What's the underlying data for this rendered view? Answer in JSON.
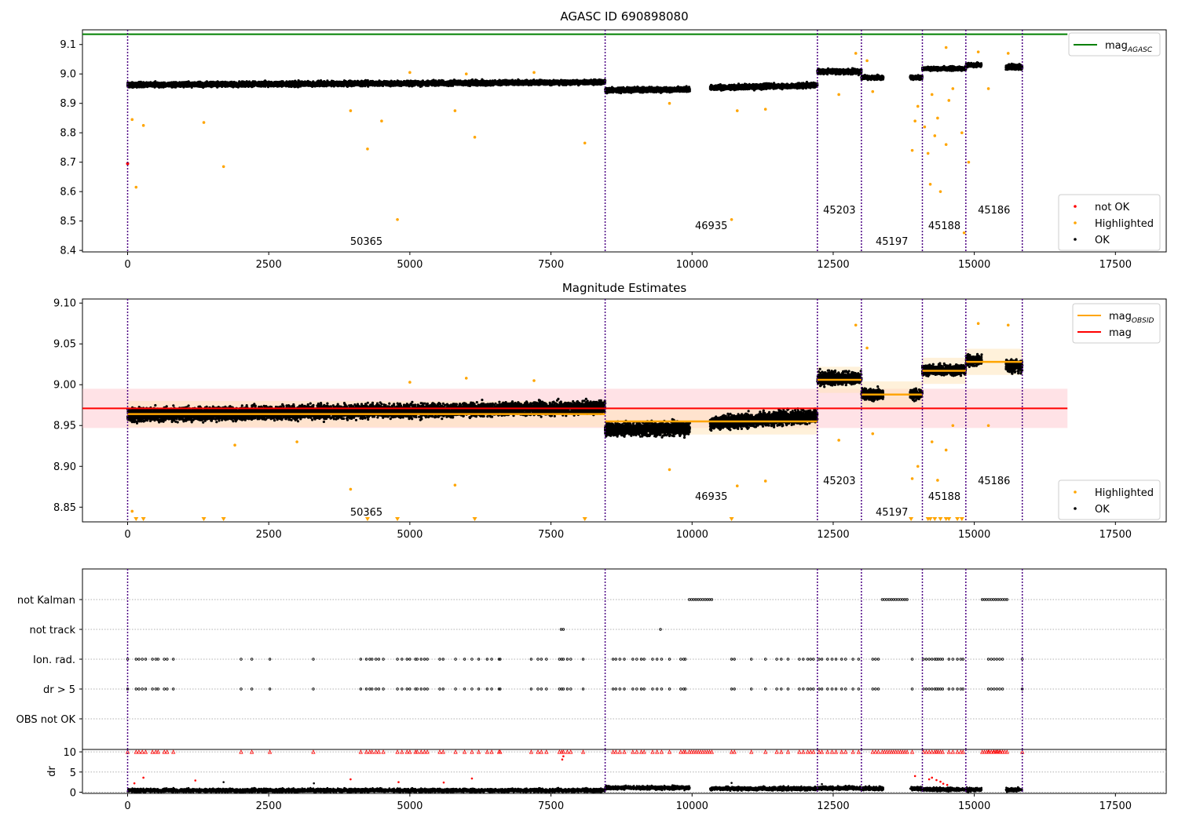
{
  "figure": {
    "ticks_x": [
      0,
      2500,
      5000,
      7500,
      10000,
      12500,
      15000,
      17500
    ],
    "boundaries": [
      0,
      8460,
      12220,
      13000,
      14080,
      14850,
      15850
    ],
    "obsid_labels": [
      {
        "text": "50365",
        "x": 4230,
        "level": "low"
      },
      {
        "text": "46935",
        "x": 10340,
        "level": "mid"
      },
      {
        "text": "45203",
        "x": 12610,
        "level": "high"
      },
      {
        "text": "45197",
        "x": 13540,
        "level": "low"
      },
      {
        "text": "45188",
        "x": 14470,
        "level": "mid"
      },
      {
        "text": "45186",
        "x": 15350,
        "level": "high"
      }
    ],
    "colors": {
      "agasc": "#008000",
      "mag": "#ff0000",
      "obsid": "#ffa500",
      "boundary": "#4b0082",
      "ok": "#000000",
      "not_ok": "#ff0000",
      "highlighted": "#ffa500"
    }
  },
  "chart_data": [
    {
      "type": "scatter",
      "title": "AGASC ID 690898080",
      "xlim": [
        -800,
        18400
      ],
      "ylim": [
        8.395,
        9.15
      ],
      "yticks": [
        "8.4",
        "8.5",
        "8.6",
        "8.7",
        "8.8",
        "8.9",
        "9.0",
        "9.1"
      ],
      "agasc_mag": 9.135,
      "agasc_x_range": [
        -800,
        16650
      ],
      "segments": [
        {
          "x": [
            0,
            8460
          ],
          "start": 8.963,
          "end": 8.972,
          "spread": 0.012
        },
        {
          "x": [
            8460,
            9960
          ],
          "start": 8.945,
          "end": 8.947,
          "spread": 0.012
        },
        {
          "x": [
            10320,
            12220
          ],
          "start": 8.953,
          "end": 8.962,
          "spread": 0.012
        },
        {
          "x": [
            12220,
            13000
          ],
          "start": 9.008,
          "end": 9.008,
          "spread": 0.012
        },
        {
          "x": [
            13000,
            13390
          ],
          "start": 8.988,
          "end": 8.988,
          "spread": 0.01
        },
        {
          "x": [
            13860,
            14080
          ],
          "start": 8.988,
          "end": 8.988,
          "spread": 0.01
        },
        {
          "x": [
            14080,
            14850
          ],
          "start": 9.018,
          "end": 9.018,
          "spread": 0.009
        },
        {
          "x": [
            14850,
            15130
          ],
          "start": 9.03,
          "end": 9.03,
          "spread": 0.01
        },
        {
          "x": [
            15560,
            15850
          ],
          "start": 9.023,
          "end": 9.023,
          "spread": 0.012
        }
      ],
      "highlighted": [
        [
          80,
          8.845
        ],
        [
          150,
          8.615
        ],
        [
          280,
          8.825
        ],
        [
          1350,
          8.835
        ],
        [
          1700,
          8.685
        ],
        [
          3950,
          8.875
        ],
        [
          4250,
          8.745
        ],
        [
          4500,
          8.84
        ],
        [
          4780,
          8.505
        ],
        [
          5800,
          8.875
        ],
        [
          6150,
          8.785
        ],
        [
          8100,
          8.765
        ],
        [
          10700,
          8.505
        ],
        [
          10800,
          8.875
        ],
        [
          12600,
          8.93
        ],
        [
          13200,
          8.94
        ],
        [
          13900,
          8.74
        ],
        [
          13950,
          8.84
        ],
        [
          14000,
          8.89
        ],
        [
          14120,
          8.82
        ],
        [
          14180,
          8.73
        ],
        [
          14220,
          8.625
        ],
        [
          14300,
          8.79
        ],
        [
          14350,
          8.85
        ],
        [
          14400,
          8.6
        ],
        [
          14500,
          8.76
        ],
        [
          14550,
          8.91
        ],
        [
          14620,
          8.95
        ],
        [
          14780,
          8.8
        ],
        [
          14820,
          8.46
        ],
        [
          14900,
          8.7
        ],
        [
          15250,
          8.95
        ],
        [
          9600,
          8.9
        ],
        [
          11300,
          8.88
        ],
        [
          5000,
          9.005
        ],
        [
          6000,
          9.0
        ],
        [
          7200,
          9.005
        ],
        [
          12900,
          9.07
        ],
        [
          13100,
          9.045
        ],
        [
          14500,
          9.09
        ],
        [
          15070,
          9.075
        ],
        [
          15600,
          9.07
        ],
        [
          14250,
          8.93
        ]
      ],
      "not_ok": [
        [
          0,
          8.695
        ]
      ],
      "legend_top": [
        {
          "label": "mag",
          "sub": "AGASC",
          "kind": "line",
          "color": "#008000"
        }
      ],
      "legend_bottom": [
        {
          "label": "not OK",
          "kind": "dot",
          "color": "#ff0000"
        },
        {
          "label": "Highlighted",
          "kind": "dot",
          "color": "#ffa500"
        },
        {
          "label": "OK",
          "kind": "dot",
          "color": "#000000"
        }
      ]
    },
    {
      "type": "scatter",
      "title": "Magnitude Estimates",
      "xlim": [
        -800,
        18400
      ],
      "ylim": [
        8.832,
        9.105
      ],
      "yticks": [
        "8.85",
        "8.90",
        "8.95",
        "9.00",
        "9.05",
        "9.10"
      ],
      "mag": 8.971,
      "mag_band": [
        8.947,
        8.995
      ],
      "mag_x_range": [
        -800,
        16650
      ],
      "obsid_mags": [
        {
          "x": [
            0,
            8460
          ],
          "mag": 8.964
        },
        {
          "x": [
            8460,
            12220
          ],
          "mag": 8.955
        },
        {
          "x": [
            12220,
            13000
          ],
          "mag": 9.006
        },
        {
          "x": [
            13000,
            14080
          ],
          "mag": 8.988
        },
        {
          "x": [
            14080,
            14850
          ],
          "mag": 9.017
        },
        {
          "x": [
            14850,
            15850
          ],
          "mag": 9.028
        }
      ],
      "segments": [
        {
          "x": [
            0,
            8460
          ],
          "start": 8.963,
          "end": 8.972,
          "spread": 0.012
        },
        {
          "x": [
            8460,
            9960
          ],
          "start": 8.945,
          "end": 8.947,
          "spread": 0.012
        },
        {
          "x": [
            10320,
            12220
          ],
          "start": 8.953,
          "end": 8.962,
          "spread": 0.012
        },
        {
          "x": [
            12220,
            13000
          ],
          "start": 9.008,
          "end": 9.008,
          "spread": 0.012
        },
        {
          "x": [
            13000,
            13390
          ],
          "start": 8.988,
          "end": 8.988,
          "spread": 0.01
        },
        {
          "x": [
            13860,
            14080
          ],
          "start": 8.988,
          "end": 8.988,
          "spread": 0.01
        },
        {
          "x": [
            14080,
            14850
          ],
          "start": 9.018,
          "end": 9.018,
          "spread": 0.009
        },
        {
          "x": [
            14850,
            15130
          ],
          "start": 9.03,
          "end": 9.03,
          "spread": 0.01
        },
        {
          "x": [
            15560,
            15850
          ],
          "start": 9.023,
          "end": 9.023,
          "spread": 0.012
        }
      ],
      "highlighted": [
        [
          80,
          8.845
        ],
        [
          3950,
          8.872
        ],
        [
          5800,
          8.877
        ],
        [
          9600,
          8.896
        ],
        [
          10800,
          8.876
        ],
        [
          11300,
          8.882
        ],
        [
          13900,
          8.885
        ],
        [
          14350,
          8.883
        ],
        [
          15250,
          8.95
        ],
        [
          12600,
          8.932
        ],
        [
          13200,
          8.94
        ],
        [
          14000,
          8.9
        ],
        [
          14500,
          8.92
        ],
        [
          14620,
          8.95
        ],
        [
          5000,
          9.003
        ],
        [
          6000,
          9.008
        ],
        [
          7200,
          9.005
        ],
        [
          12900,
          9.073
        ],
        [
          13100,
          9.045
        ],
        [
          15070,
          9.075
        ],
        [
          15600,
          9.073
        ],
        [
          14250,
          8.93
        ],
        [
          3000,
          8.93
        ],
        [
          1900,
          8.926
        ]
      ],
      "below_markers": [
        150,
        280,
        1350,
        1700,
        4250,
        4780,
        6150,
        8100,
        10700,
        13880,
        14180,
        14220,
        14300,
        14400,
        14500,
        14550,
        14700,
        14780
      ],
      "legend_top": [
        {
          "label": "mag",
          "sub": "OBSID",
          "kind": "line",
          "color": "#ffa500"
        },
        {
          "label": "mag",
          "kind": "line",
          "color": "#ff0000"
        }
      ],
      "legend_bottom": [
        {
          "label": "Highlighted",
          "kind": "dot",
          "color": "#ffa500"
        },
        {
          "label": "OK",
          "kind": "dot",
          "color": "#000000"
        }
      ]
    },
    {
      "type": "scatter",
      "flags": [
        "not Kalman",
        "not track",
        "Ion. rad.",
        "dr > 5",
        "OBS not OK"
      ],
      "flag_data": {
        "not Kalman": [
          [
            9950,
            10380
          ],
          [
            13370,
            13840
          ],
          [
            15140,
            15600
          ]
        ],
        "not track": [
          [
            7680,
            7720
          ],
          [
            9440,
            9460
          ]
        ],
        "Ion. rad.": [
          0,
          150,
          200,
          260,
          320,
          440,
          500,
          540,
          650,
          700,
          810,
          2010,
          2200,
          2520,
          3290,
          4130,
          4230,
          4290,
          4330,
          4400,
          4450,
          4530,
          4780,
          4860,
          4950,
          5000,
          5100,
          5130,
          5200,
          5260,
          5310,
          5530,
          5590,
          5810,
          5970,
          6100,
          6220,
          6370,
          6450,
          6580,
          6600,
          7150,
          7270,
          7330,
          7420,
          7650,
          7690,
          7720,
          7790,
          7850,
          8070,
          8600,
          8650,
          8720,
          8800,
          8950,
          9020,
          9100,
          9150,
          9300,
          9380,
          9460,
          9600,
          9800,
          9850,
          9880,
          10700,
          10750,
          11050,
          11300,
          11500,
          11580,
          11700,
          11900,
          11970,
          12050,
          12100,
          12150,
          12250,
          12300,
          12400,
          12480,
          12550,
          12650,
          12720,
          12850,
          12950,
          13200,
          13250,
          13300,
          13900,
          14100,
          14150,
          14200,
          14250,
          14300,
          14330,
          14360,
          14400,
          14440,
          14550,
          14620,
          14700,
          14760,
          14800,
          15250,
          15300,
          15350,
          15400,
          15450,
          15500,
          15850
        ],
        "dr > 5": [
          0,
          150,
          200,
          260,
          320,
          440,
          500,
          540,
          650,
          700,
          810,
          2010,
          2200,
          2520,
          3290,
          4130,
          4230,
          4290,
          4330,
          4400,
          4450,
          4530,
          4780,
          4860,
          4950,
          5000,
          5100,
          5130,
          5200,
          5260,
          5310,
          5530,
          5590,
          5810,
          5970,
          6100,
          6220,
          6370,
          6450,
          6580,
          6600,
          7150,
          7270,
          7330,
          7420,
          7650,
          7690,
          7720,
          7790,
          7850,
          8070,
          8600,
          8650,
          8720,
          8800,
          8950,
          9020,
          9100,
          9150,
          9300,
          9380,
          9460,
          9600,
          9800,
          9850,
          9880,
          10700,
          10750,
          11050,
          11300,
          11500,
          11580,
          11700,
          11900,
          11970,
          12050,
          12100,
          12150,
          12250,
          12300,
          12400,
          12480,
          12550,
          12650,
          12720,
          12850,
          12950,
          13200,
          13250,
          13300,
          13900,
          14100,
          14150,
          14200,
          14250,
          14300,
          14330,
          14360,
          14400,
          14440,
          14550,
          14620,
          14700,
          14760,
          14800,
          15250,
          15300,
          15350,
          15400,
          15450,
          15500,
          15850
        ],
        "OBS not OK": []
      }
    },
    {
      "type": "scatter",
      "ylabel": "dr",
      "ylim": [
        -0.3,
        10.6
      ],
      "yticks": [
        "0",
        "5",
        "10"
      ],
      "capped_value": 10,
      "segments": [
        {
          "x": [
            0,
            8460
          ],
          "level": 0.45
        },
        {
          "x": [
            8460,
            9960
          ],
          "level": 1.1
        },
        {
          "x": [
            10320,
            12220
          ],
          "level": 0.9
        },
        {
          "x": [
            12220,
            13000
          ],
          "level": 1.0
        },
        {
          "x": [
            13000,
            13390
          ],
          "level": 0.9
        },
        {
          "x": [
            13860,
            14080
          ],
          "level": 0.9
        },
        {
          "x": [
            14080,
            14850
          ],
          "level": 0.7
        },
        {
          "x": [
            14850,
            15130
          ],
          "level": 0.6
        },
        {
          "x": [
            15560,
            15850
          ],
          "level": 0.6
        }
      ],
      "red_points": [
        [
          120,
          2.2
        ],
        [
          280,
          3.6
        ],
        [
          1200,
          2.9
        ],
        [
          3950,
          3.2
        ],
        [
          6100,
          3.4
        ],
        [
          7700,
          8.1
        ],
        [
          7720,
          8.9
        ],
        [
          13950,
          4.0
        ],
        [
          14200,
          3.2
        ],
        [
          14250,
          3.6
        ],
        [
          14330,
          3.0
        ],
        [
          14400,
          2.6
        ],
        [
          14450,
          2.1
        ],
        [
          14520,
          1.8
        ],
        [
          4800,
          2.5
        ],
        [
          5600,
          2.4
        ]
      ],
      "black_points": [
        [
          1700,
          2.5
        ],
        [
          3300,
          2.2
        ],
        [
          10700,
          2.3
        ],
        [
          12300,
          2.0
        ]
      ]
    }
  ]
}
